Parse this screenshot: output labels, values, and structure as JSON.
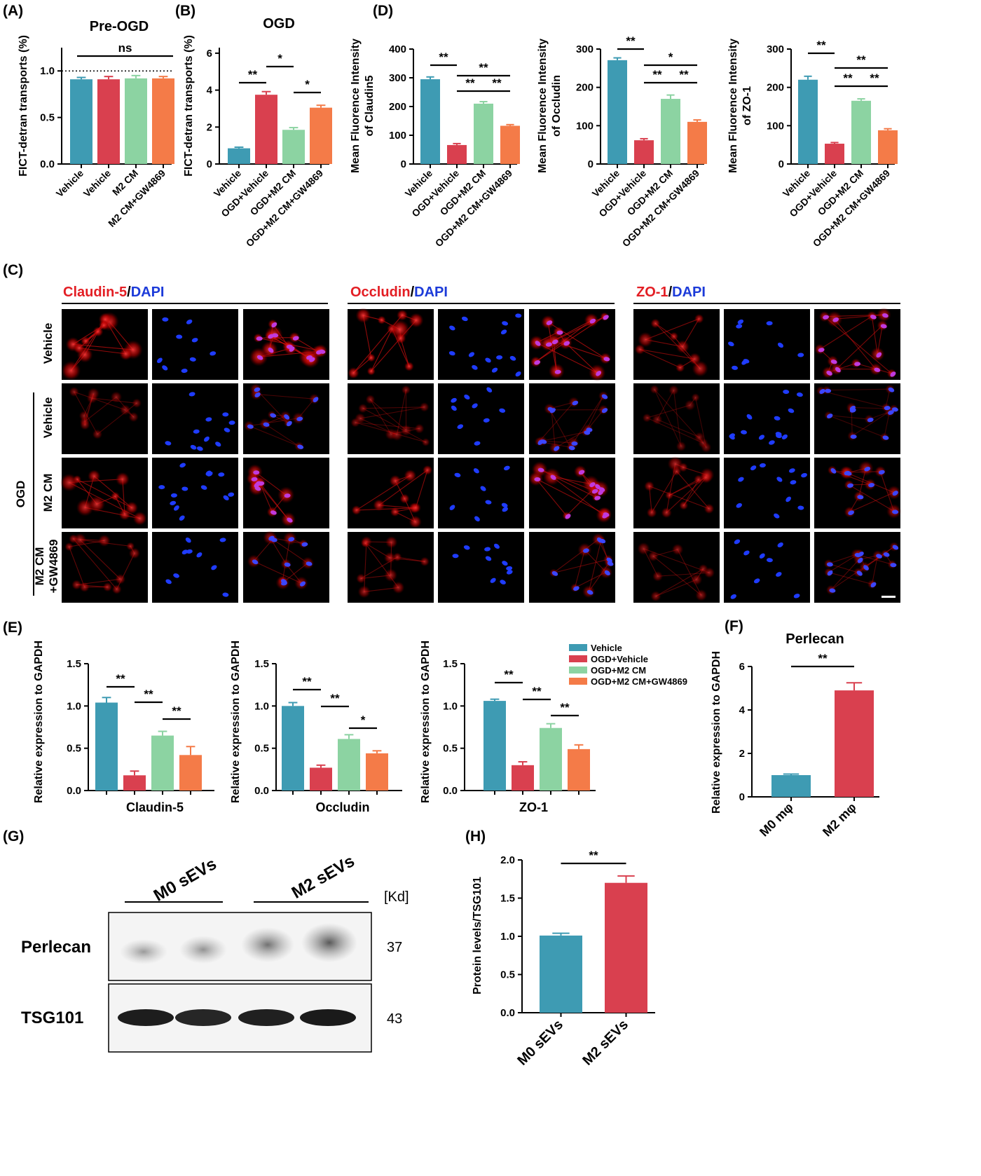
{
  "colors": {
    "vehicle": "#3E9BB3",
    "ogd_vehicle": "#D9404F",
    "ogd_m2cm": "#8CD3A2",
    "ogd_m2cm_gw": "#F47B48",
    "claudin_red": "#E31E24",
    "dapi_blue": "#1C3BD9"
  },
  "panels": {
    "A": {
      "label": "(A)",
      "title": "Pre-OGD"
    },
    "B": {
      "label": "(B)",
      "title": "OGD"
    },
    "C": {
      "label": "(C)"
    },
    "D": {
      "label": "(D)"
    },
    "E": {
      "label": "(E)"
    },
    "F": {
      "label": "(F)",
      "title": "Perlecan"
    },
    "G": {
      "label": "(G)"
    },
    "H": {
      "label": "(H)"
    }
  },
  "panel_c": {
    "markers": [
      {
        "red": "Claudin-5",
        "sep": "/",
        "blue": "DAPI"
      },
      {
        "red": "Occludin",
        "sep": "/",
        "blue": "DAPI"
      },
      {
        "red": "ZO-1",
        "sep": "/",
        "blue": "DAPI"
      }
    ],
    "row_labels": [
      "Vehicle",
      "Vehicle",
      "M2 CM",
      "M2 CM",
      "+GW4869"
    ],
    "group_label": "OGD"
  },
  "legend_e": [
    "Vehicle",
    "OGD+Vehicle",
    "OGD+M2 CM",
    "OGD+M2 CM+GW4869"
  ],
  "panel_g": {
    "groups": [
      "M0 sEVs",
      "M2 sEVs"
    ],
    "unit": "[Kd]",
    "rows": [
      {
        "name": "Perlecan",
        "kd": "37"
      },
      {
        "name": "TSG101",
        "kd": "43"
      }
    ]
  },
  "chart_data": [
    {
      "id": "A",
      "type": "bar",
      "title": "Pre-OGD",
      "ylabel": "FICT-detran transports (%)",
      "categories": [
        "Vehicle",
        "Vehicle",
        "M2 CM",
        "M2 CM+GW4869"
      ],
      "values": [
        0.91,
        0.91,
        0.92,
        0.92
      ],
      "errors": [
        0.02,
        0.03,
        0.03,
        0.02
      ],
      "ylim": [
        0,
        1.25
      ],
      "yticks": [
        "0.0",
        "0.5",
        "1.0"
      ],
      "reference_line": 1.0,
      "annotations": [
        {
          "from": 0,
          "to": 3,
          "text": "ns"
        }
      ]
    },
    {
      "id": "B",
      "type": "bar",
      "title": "OGD",
      "ylabel": "FICT-detran transports (%)",
      "categories": [
        "Vehicle",
        "OGD+Vehicle",
        "OGD+M2 CM",
        "OGD+M2 CM+GW4869"
      ],
      "values": [
        0.85,
        3.75,
        1.85,
        3.05
      ],
      "errors": [
        0.06,
        0.17,
        0.12,
        0.13
      ],
      "ylim": [
        0,
        6.3
      ],
      "yticks": [
        "0",
        "2",
        "4",
        "6"
      ],
      "annotations": [
        {
          "from": 0,
          "to": 1,
          "text": "**"
        },
        {
          "from": 1,
          "to": 2,
          "text": "*"
        },
        {
          "from": 2,
          "to": 3,
          "text": "*"
        }
      ]
    },
    {
      "id": "D1",
      "type": "bar",
      "ylabel": "Mean Fluorence Intensity of Claudin5",
      "categories": [
        "Vehicle",
        "OGD+Vehicle",
        "OGD+M2 CM",
        "OGD+M2 CM+GW4869"
      ],
      "values": [
        295,
        66,
        210,
        133
      ],
      "errors": [
        8,
        5,
        7,
        4
      ],
      "ylim": [
        0,
        400
      ],
      "yticks": [
        "0",
        "100",
        "200",
        "300",
        "400"
      ],
      "annotations": [
        {
          "from": 0,
          "to": 1,
          "text": "**"
        },
        {
          "from": 1,
          "to": 3,
          "text": "**"
        },
        {
          "from": 1,
          "to": 2,
          "text": "**"
        },
        {
          "from": 2,
          "to": 3,
          "text": "**"
        }
      ]
    },
    {
      "id": "D2",
      "type": "bar",
      "ylabel": "Mean Fluorence Intensity of Occludin",
      "categories": [
        "Vehicle",
        "OGD+Vehicle",
        "OGD+M2 CM",
        "OGD+M2 CM+GW4869"
      ],
      "values": [
        271,
        62,
        170,
        110
      ],
      "errors": [
        6,
        4,
        10,
        5
      ],
      "ylim": [
        0,
        300
      ],
      "yticks": [
        "0",
        "100",
        "200",
        "300"
      ],
      "annotations": [
        {
          "from": 0,
          "to": 1,
          "text": "**"
        },
        {
          "from": 1,
          "to": 3,
          "text": "*"
        },
        {
          "from": 1,
          "to": 2,
          "text": "**"
        },
        {
          "from": 2,
          "to": 3,
          "text": "**"
        }
      ]
    },
    {
      "id": "D3",
      "type": "bar",
      "ylabel": "Mean Fluorence Intensity of ZO-1",
      "categories": [
        "Vehicle",
        "OGD+Vehicle",
        "OGD+M2 CM",
        "OGD+M2 CM+GW4869"
      ],
      "values": [
        220,
        53,
        165,
        88
      ],
      "errors": [
        9,
        3,
        5,
        4
      ],
      "ylim": [
        0,
        300
      ],
      "yticks": [
        "0",
        "100",
        "200",
        "300"
      ],
      "annotations": [
        {
          "from": 0,
          "to": 1,
          "text": "**"
        },
        {
          "from": 1,
          "to": 3,
          "text": "**"
        },
        {
          "from": 1,
          "to": 2,
          "text": "**"
        },
        {
          "from": 2,
          "to": 3,
          "text": "**"
        }
      ]
    },
    {
      "id": "E1",
      "type": "bar",
      "xlabel": "Claudin-5",
      "ylabel": "Relative expression to GAPDH",
      "series": [
        "Vehicle",
        "OGD+Vehicle",
        "OGD+M2 CM",
        "OGD+M2 CM+GW4869"
      ],
      "values": [
        1.04,
        0.18,
        0.65,
        0.42
      ],
      "errors": [
        0.06,
        0.05,
        0.05,
        0.1
      ],
      "ylim": [
        0,
        1.5
      ],
      "yticks": [
        "0.0",
        "0.5",
        "1.0",
        "1.5"
      ],
      "annotations": [
        {
          "from": 0,
          "to": 1,
          "text": "**"
        },
        {
          "from": 1,
          "to": 2,
          "text": "**"
        },
        {
          "from": 2,
          "to": 3,
          "text": "**"
        }
      ]
    },
    {
      "id": "E2",
      "type": "bar",
      "xlabel": "Occludin",
      "ylabel": "Relative expression to GAPDH",
      "series": [
        "Vehicle",
        "OGD+Vehicle",
        "OGD+M2 CM",
        "OGD+M2 CM+GW4869"
      ],
      "values": [
        1.0,
        0.27,
        0.61,
        0.44
      ],
      "errors": [
        0.04,
        0.03,
        0.05,
        0.03
      ],
      "ylim": [
        0,
        1.5
      ],
      "yticks": [
        "0.0",
        "0.5",
        "1.0",
        "1.5"
      ],
      "annotations": [
        {
          "from": 0,
          "to": 1,
          "text": "**"
        },
        {
          "from": 1,
          "to": 2,
          "text": "**"
        },
        {
          "from": 2,
          "to": 3,
          "text": "*"
        }
      ]
    },
    {
      "id": "E3",
      "type": "bar",
      "xlabel": "ZO-1",
      "ylabel": "Relative expression to GAPDH",
      "series": [
        "Vehicle",
        "OGD+Vehicle",
        "OGD+M2 CM",
        "OGD+M2 CM+GW4869"
      ],
      "values": [
        1.06,
        0.3,
        0.74,
        0.49
      ],
      "errors": [
        0.02,
        0.04,
        0.05,
        0.05
      ],
      "ylim": [
        0,
        1.5
      ],
      "yticks": [
        "0.0",
        "0.5",
        "1.0",
        "1.5"
      ],
      "annotations": [
        {
          "from": 0,
          "to": 1,
          "text": "**"
        },
        {
          "from": 1,
          "to": 2,
          "text": "**"
        },
        {
          "from": 2,
          "to": 3,
          "text": "**"
        }
      ]
    },
    {
      "id": "F",
      "type": "bar",
      "title": "Perlecan",
      "ylabel": "Relative expression to GAPDH",
      "categories": [
        "M0 mφ",
        "M2 mφ"
      ],
      "values": [
        1.0,
        4.9
      ],
      "errors": [
        0.05,
        0.35
      ],
      "ylim": [
        0,
        6
      ],
      "yticks": [
        "0",
        "2",
        "4",
        "6"
      ],
      "annotations": [
        {
          "from": 0,
          "to": 1,
          "text": "**"
        }
      ]
    },
    {
      "id": "H",
      "type": "bar",
      "ylabel": "Protein levels/TSG101",
      "categories": [
        "M0 sEVs",
        "M2 sEVs"
      ],
      "values": [
        1.01,
        1.7
      ],
      "errors": [
        0.03,
        0.09
      ],
      "ylim": [
        0,
        2.0
      ],
      "yticks": [
        "0.0",
        "0.5",
        "1.0",
        "1.5",
        "2.0"
      ],
      "annotations": [
        {
          "from": 0,
          "to": 1,
          "text": "**"
        }
      ]
    }
  ]
}
